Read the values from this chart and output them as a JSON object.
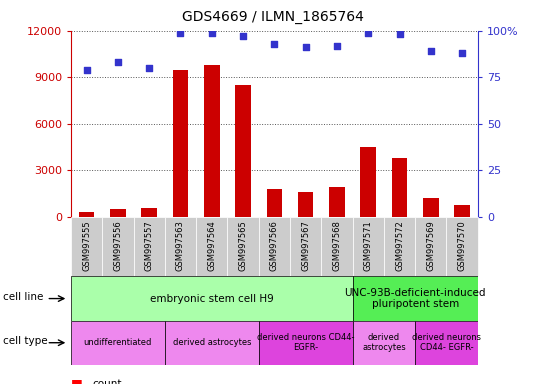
{
  "title": "GDS4669 / ILMN_1865764",
  "samples": [
    "GSM997555",
    "GSM997556",
    "GSM997557",
    "GSM997563",
    "GSM997564",
    "GSM997565",
    "GSM997566",
    "GSM997567",
    "GSM997568",
    "GSM997571",
    "GSM997572",
    "GSM997569",
    "GSM997570"
  ],
  "counts": [
    300,
    500,
    600,
    9500,
    9800,
    8500,
    1800,
    1600,
    1900,
    4500,
    3800,
    1200,
    800
  ],
  "percentiles": [
    79,
    83,
    80,
    99,
    99,
    97,
    93,
    91,
    92,
    99,
    98,
    89,
    88
  ],
  "ylim_left": [
    0,
    12000
  ],
  "ylim_right": [
    0,
    100
  ],
  "yticks_left": [
    0,
    3000,
    6000,
    9000,
    12000
  ],
  "ytick_labels_left": [
    "0",
    "3000",
    "6000",
    "9000",
    "12000"
  ],
  "yticks_right": [
    0,
    25,
    50,
    75,
    100
  ],
  "ytick_labels_right": [
    "0",
    "25",
    "50",
    "75",
    "100%"
  ],
  "bar_color": "#cc0000",
  "dot_color": "#3333cc",
  "dot_size": 18,
  "bar_width": 0.5,
  "cell_line_groups": [
    {
      "label": "embryonic stem cell H9",
      "start": 0,
      "end": 9,
      "color": "#aaffaa"
    },
    {
      "label": "UNC-93B-deficient-induced\npluripotent stem",
      "start": 9,
      "end": 13,
      "color": "#55ee55"
    }
  ],
  "cell_type_groups": [
    {
      "label": "undifferentiated",
      "start": 0,
      "end": 3,
      "color": "#ee88ee"
    },
    {
      "label": "derived astrocytes",
      "start": 3,
      "end": 6,
      "color": "#ee88ee"
    },
    {
      "label": "derived neurons CD44-\nEGFR-",
      "start": 6,
      "end": 9,
      "color": "#dd44dd"
    },
    {
      "label": "derived\nastrocytes",
      "start": 9,
      "end": 11,
      "color": "#ee88ee"
    },
    {
      "label": "derived neurons\nCD44- EGFR-",
      "start": 11,
      "end": 13,
      "color": "#dd44dd"
    }
  ],
  "grid_color": "#555555",
  "xtick_bg_color": "#cccccc",
  "left_label_color": "#cc0000",
  "right_label_color": "#3333cc"
}
